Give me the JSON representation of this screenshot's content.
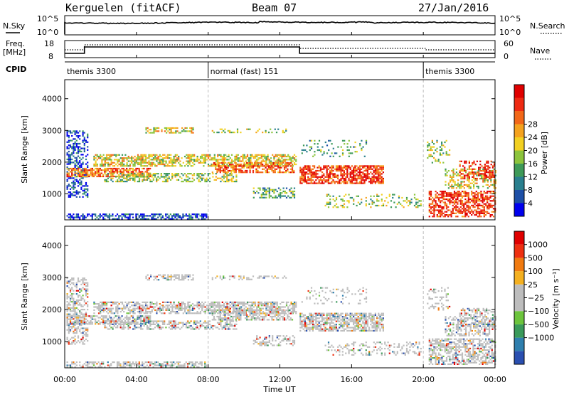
{
  "header": {
    "station": "Kerguelen (fitACF)",
    "beam": "Beam 07",
    "date": "27/Jan/2016"
  },
  "panels": {
    "nsky_label": "N.Sky",
    "nsky_ticks": [
      "10^5",
      "10^0"
    ],
    "nsearch_label": "N.Search",
    "nsearch_ticks": [
      "10^5",
      "10^0"
    ],
    "freq_label": "Freq.",
    "freq_unit": "[MHz]",
    "freq_ticks": [
      "18",
      "8"
    ],
    "nave_label": "Nave",
    "nave_ticks": [
      "60",
      "0"
    ],
    "cpid_label": "CPID",
    "cpid_segments": [
      {
        "label": "themis 3300",
        "start_hr": 0,
        "end_hr": 8
      },
      {
        "label": "normal (fast) 151",
        "start_hr": 8,
        "end_hr": 20
      },
      {
        "label": "themis 3300",
        "start_hr": 20,
        "end_hr": 24
      }
    ]
  },
  "chart_data": [
    {
      "type": "heatmap",
      "name": "power",
      "ylabel": "Slant Range [km]",
      "yticks": [
        "1000",
        "2000",
        "3000",
        "4000"
      ],
      "yticks_values": [
        1000,
        2000,
        3000,
        4000
      ],
      "ylim": [
        180,
        4600
      ],
      "colorbar_label": "Power [dB]",
      "colorbar_ticks": [
        "4",
        "8",
        "12",
        "16",
        "20",
        "24",
        "28"
      ],
      "colorbar_colors": [
        "#0000ee",
        "#1d4fa6",
        "#2a7f8e",
        "#3e9a58",
        "#8cc43c",
        "#f2d022",
        "#f4a21e",
        "#f26718",
        "#ee2a12",
        "#e00000"
      ]
    },
    {
      "type": "heatmap",
      "name": "velocity",
      "ylabel": "Slant Range [km]",
      "yticks": [
        "1000",
        "2000",
        "3000",
        "4000"
      ],
      "yticks_values": [
        1000,
        2000,
        3000,
        4000
      ],
      "ylim": [
        180,
        4600
      ],
      "colorbar_label": "Velocity [m s⁻¹]",
      "colorbar_ticks": [
        "1000",
        "500",
        "100",
        "25",
        "−25",
        "−100",
        "−500",
        "−1000"
      ],
      "colorbar_colors": [
        "#2a4fb0",
        "#2f7fae",
        "#3a9a5a",
        "#6cc43c",
        "#bdbdbd",
        "#bdbdbd",
        "#f4b020",
        "#f07a10",
        "#ee3010",
        "#e00000"
      ]
    }
  ],
  "xaxis": {
    "label": "Time UT",
    "ticks": [
      "00:00",
      "04:00",
      "08:00",
      "12:00",
      "16:00",
      "20:00",
      "00:00"
    ],
    "tick_hours": [
      0,
      4,
      8,
      12,
      16,
      20,
      24
    ]
  }
}
